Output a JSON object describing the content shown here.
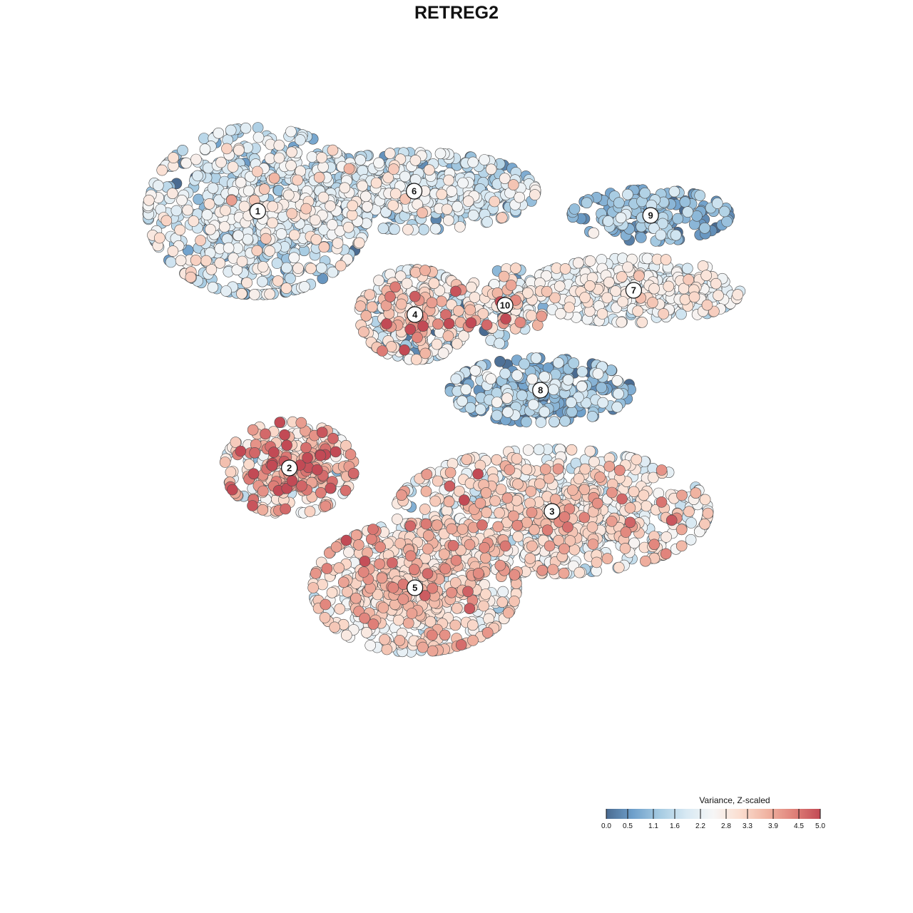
{
  "chart_data": {
    "type": "scatter",
    "title": "RETREG2",
    "xlabel": "",
    "ylabel": "",
    "xlim": [
      0,
      100
    ],
    "ylim": [
      0,
      100
    ],
    "colorbar": {
      "title": "Variance, Z-scaled",
      "min": 0.0,
      "max": 5.0,
      "ticks": [
        0.0,
        0.5,
        1.1,
        1.6,
        2.2,
        2.8,
        3.3,
        3.9,
        4.5,
        5.0
      ],
      "tick_labels": [
        "0.0",
        "0.5",
        "1.1",
        "1.6",
        "2.2",
        "2.8",
        "3.3",
        "3.9",
        "4.5",
        "5.0"
      ],
      "colors": [
        "#4a6b91",
        "#6fa0cb",
        "#a6cbe2",
        "#d8e9f3",
        "#f6f6f6",
        "#fbded0",
        "#f0b4a2",
        "#e0827a",
        "#c24a55"
      ],
      "placement": "bottom-right"
    },
    "clusters": [
      {
        "label": "1",
        "x": 24.2,
        "y": 80.4,
        "sx": 9.5,
        "sy": 7.8,
        "value": 1.8,
        "spread": 0.7,
        "n": 780
      },
      {
        "label": "6",
        "x": 44.5,
        "y": 83.2,
        "sx": 10.5,
        "sy": 3.6,
        "value": 1.6,
        "spread": 0.7,
        "n": 520
      },
      {
        "label": "9",
        "x": 75.2,
        "y": 79.8,
        "sx": 6.8,
        "sy": 2.4,
        "value": 0.9,
        "spread": 0.5,
        "n": 170
      },
      {
        "label": "7",
        "x": 73.0,
        "y": 69.3,
        "sx": 9.2,
        "sy": 3.0,
        "value": 2.3,
        "spread": 0.5,
        "n": 360
      },
      {
        "label": "4",
        "x": 44.6,
        "y": 65.9,
        "sx": 4.8,
        "sy": 4.2,
        "value": 2.3,
        "spread": 1.1,
        "n": 360
      },
      {
        "label": "10",
        "x": 56.3,
        "y": 67.2,
        "sx": 3.3,
        "sy": 3.6,
        "value": 2.4,
        "spread": 1.2,
        "n": 120
      },
      {
        "label": "8",
        "x": 60.9,
        "y": 55.3,
        "sx": 7.8,
        "sy": 3.0,
        "value": 1.0,
        "spread": 0.7,
        "n": 300
      },
      {
        "label": "2",
        "x": 28.3,
        "y": 44.4,
        "sx": 5.6,
        "sy": 4.3,
        "value": 3.3,
        "spread": 1.0,
        "n": 300
      },
      {
        "label": "3",
        "x": 62.4,
        "y": 38.3,
        "sx": 13.5,
        "sy": 5.8,
        "value": 2.6,
        "spread": 0.8,
        "n": 820
      },
      {
        "label": "5",
        "x": 44.6,
        "y": 27.6,
        "sx": 8.8,
        "sy": 6.0,
        "value": 3.0,
        "spread": 0.7,
        "n": 620
      }
    ]
  }
}
